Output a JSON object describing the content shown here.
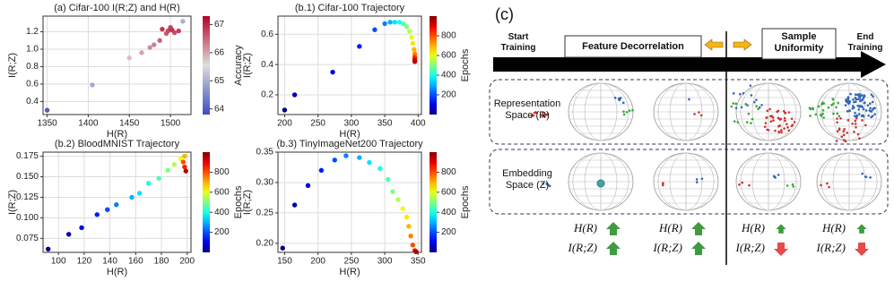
{
  "chart_data": [
    {
      "type": "scatter",
      "title": "(a) Cifar-100 I(R;Z) and H(R)",
      "x_label": "H(R)",
      "y_label": "I(R;Z)",
      "grid": true,
      "xlim": [
        1345,
        1525
      ],
      "xticks": [
        1350,
        1400,
        1450,
        1500
      ],
      "ylim": [
        0.25,
        1.38
      ],
      "yticks": [
        0.4,
        0.6,
        0.8,
        {
          "value": 1.0,
          "label": "1.0"
        },
        1.2
      ],
      "x": [
        1350,
        1405,
        1450,
        1465,
        1475,
        1480,
        1487,
        1490,
        1495,
        1497,
        1500,
        1500,
        1502,
        1505,
        1510,
        1515
      ],
      "values": [
        0.3,
        0.59,
        0.9,
        0.96,
        1.02,
        1.05,
        1.1,
        1.23,
        1.18,
        1.21,
        1.24,
        1.25,
        1.22,
        1.19,
        1.21,
        1.32
      ],
      "color_values": [
        64.0,
        64.9,
        65.8,
        66.0,
        66.2,
        66.3,
        66.5,
        66.9,
        66.6,
        66.7,
        67.1,
        66.8,
        66.9,
        66.7,
        66.8,
        65.0
      ],
      "colorbar": {
        "label": "Accuracy",
        "cmap": "coolwarm",
        "lim": [
          63.8,
          67.3
        ],
        "ticks": [
          64,
          65,
          66,
          67
        ]
      }
    },
    {
      "type": "scatter",
      "title": "(b.1) Cifar-100 Trajectory",
      "x_label": "H(R)",
      "y_label": "I(R;Z)",
      "grid": true,
      "xlim": [
        190,
        405
      ],
      "xticks": [
        200,
        250,
        300,
        350,
        400
      ],
      "ylim": [
        0.07,
        0.72
      ],
      "yticks": [
        0.2,
        0.4,
        0.6
      ],
      "x": [
        200,
        215,
        272,
        312,
        335,
        350,
        358,
        365,
        372,
        378,
        383,
        387,
        390,
        392,
        394,
        395,
        395,
        395,
        395,
        395
      ],
      "values": [
        0.1,
        0.2,
        0.35,
        0.52,
        0.63,
        0.67,
        0.68,
        0.68,
        0.68,
        0.67,
        0.65,
        0.62,
        0.58,
        0.54,
        0.5,
        0.47,
        0.45,
        0.44,
        0.43,
        0.42
      ],
      "color_values": [
        0,
        50,
        100,
        150,
        200,
        250,
        300,
        350,
        400,
        450,
        500,
        550,
        600,
        650,
        700,
        750,
        800,
        850,
        900,
        950
      ],
      "colorbar": {
        "label": "Epochs",
        "cmap": "jet",
        "lim": [
          0,
          1000
        ],
        "ticks": [
          200,
          400,
          600,
          800
        ]
      }
    },
    {
      "type": "scatter",
      "title": "(b.2) BloodMNIST Trajectory",
      "x_label": "H(R)",
      "y_label": "I(R;Z)",
      "grid": true,
      "xlim": [
        88,
        203
      ],
      "xticks": [
        100,
        120,
        140,
        160,
        180,
        200
      ],
      "ylim": [
        0.058,
        0.18
      ],
      "yticks": [
        0.075,
        {
          "value": 0.1,
          "label": "0.100"
        },
        0.125,
        {
          "value": 0.15,
          "label": "0.150"
        },
        0.175
      ],
      "x": [
        92,
        108,
        118,
        130,
        138,
        145,
        157,
        163,
        170,
        178,
        185,
        190,
        195,
        198,
        197,
        198,
        199
      ],
      "values": [
        0.062,
        0.08,
        0.088,
        0.104,
        0.11,
        0.116,
        0.125,
        0.13,
        0.142,
        0.148,
        0.158,
        0.165,
        0.172,
        0.175,
        0.168,
        0.162,
        0.157
      ],
      "color_values": [
        0,
        50,
        100,
        150,
        200,
        250,
        300,
        350,
        400,
        450,
        500,
        550,
        600,
        700,
        800,
        850,
        950
      ],
      "colorbar": {
        "label": "Epochs",
        "cmap": "jet",
        "lim": [
          0,
          1000
        ],
        "ticks": [
          200,
          400,
          600,
          800
        ]
      }
    },
    {
      "type": "scatter",
      "title": "(b.3) TinyImageNet200 Trajectory",
      "x_label": "H(R)",
      "y_label": "I(R;Z)",
      "grid": true,
      "xlim": [
        140,
        355
      ],
      "xticks": [
        150,
        200,
        250,
        300,
        350
      ],
      "ylim": [
        0.185,
        0.35
      ],
      "yticks": [
        {
          "value": 0.2,
          "label": "0.20"
        },
        0.25,
        {
          "value": 0.3,
          "label": "0.30"
        },
        0.35
      ],
      "x": [
        147,
        165,
        185,
        205,
        225,
        242,
        262,
        277,
        293,
        305,
        312,
        320,
        327,
        333,
        336,
        339,
        342,
        345,
        347
      ],
      "values": [
        0.192,
        0.263,
        0.295,
        0.32,
        0.337,
        0.344,
        0.341,
        0.333,
        0.323,
        0.305,
        0.285,
        0.272,
        0.257,
        0.243,
        0.228,
        0.212,
        0.197,
        0.188,
        0.186
      ],
      "color_values": [
        0,
        50,
        100,
        150,
        200,
        250,
        300,
        350,
        400,
        450,
        500,
        550,
        600,
        650,
        700,
        750,
        800,
        850,
        950
      ],
      "colorbar": {
        "label": "Epochs",
        "cmap": "jet",
        "lim": [
          0,
          1000
        ],
        "ticks": [
          200,
          400,
          600,
          800
        ]
      }
    }
  ],
  "diagram": {
    "label": "(c)",
    "start": "Start Training",
    "phase_1": "Feature Decorrelation",
    "phase_2": "Sample Uniformity",
    "end": "End Training",
    "rows": [
      "Representation Space (R)",
      "Embedding Space (Z)"
    ],
    "metrics": [
      {
        "h": "H(R)",
        "i": "I(R;Z)"
      },
      {
        "h": "H(R)",
        "i": "I(R;Z)"
      },
      {
        "h": "H(R)",
        "i": "I(R;Z)"
      },
      {
        "h": "H(R)",
        "i": "I(R;Z)"
      }
    ]
  }
}
